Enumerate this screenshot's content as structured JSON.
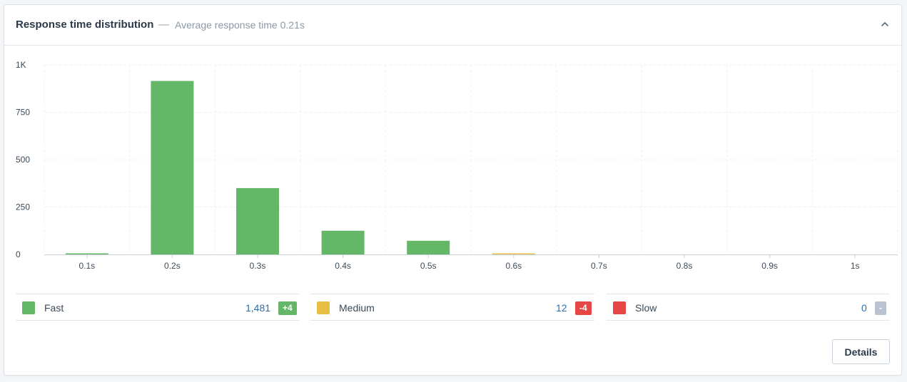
{
  "header": {
    "title": "Response time distribution",
    "separator": "—",
    "subtitle": "Average response time 0.21s"
  },
  "colors": {
    "fast": "#64b766",
    "medium": "#e9be45",
    "slow": "#e54646",
    "neutral": "#b8c4cf",
    "grid": "#eef0f3"
  },
  "chart_data": {
    "type": "bar",
    "categories": [
      "0.1s",
      "0.2s",
      "0.3s",
      "0.4s",
      "0.5s",
      "0.6s",
      "0.7s",
      "0.8s",
      "0.9s",
      "1s"
    ],
    "values": [
      4,
      915,
      350,
      125,
      72,
      4,
      0,
      0,
      0,
      0
    ],
    "bar_colors": [
      "fast",
      "fast",
      "fast",
      "fast",
      "fast",
      "medium",
      "fast",
      "fast",
      "fast",
      "fast"
    ],
    "y_ticks": [
      0,
      250,
      500,
      750,
      1000
    ],
    "y_tick_labels": [
      "0",
      "250",
      "500",
      "750",
      "1K"
    ],
    "ylim": [
      0,
      1000
    ],
    "grid": true
  },
  "legend": [
    {
      "label": "Fast",
      "count": "1,481",
      "badge": "+4",
      "color": "fast",
      "badge_color": "fast"
    },
    {
      "label": "Medium",
      "count": "12",
      "badge": "-4",
      "color": "medium",
      "badge_color": "slow"
    },
    {
      "label": "Slow",
      "count": "0",
      "badge": "-",
      "color": "slow",
      "badge_color": "neutral"
    }
  ],
  "actions": {
    "details_label": "Details"
  }
}
